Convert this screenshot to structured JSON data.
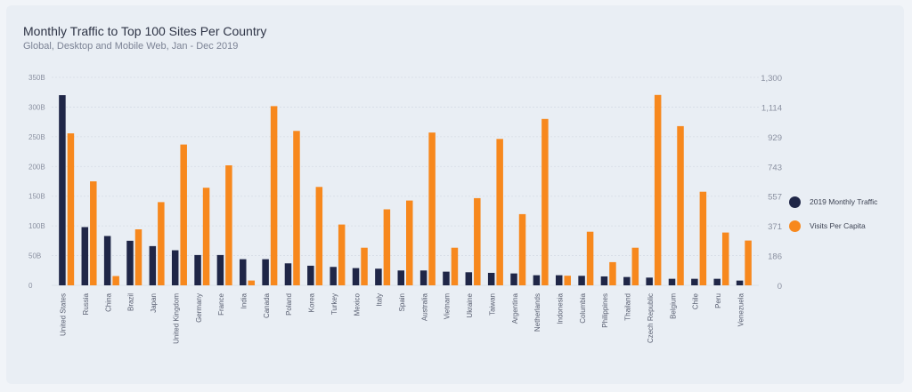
{
  "title": "Monthly Traffic to Top 100 Sites Per Country",
  "subtitle": "Global, Desktop and Mobile Web, Jan - Dec 2019",
  "colors": {
    "traffic": "#1f2647",
    "visits": "#f7881d",
    "grid": "#d6dce5",
    "tick": "#8a90a0"
  },
  "legend": [
    {
      "label": "2019 Monthly Traffic",
      "color": "#1f2647"
    },
    {
      "label": "Visits Per Capita",
      "color": "#f7881d"
    }
  ],
  "chart_data": {
    "type": "bar",
    "title": "Monthly Traffic to Top 100 Sites Per Country",
    "subtitle": "Global, Desktop and Mobile Web, Jan - Dec 2019",
    "categories": [
      "United States",
      "Russia",
      "China",
      "Brazil",
      "Japan",
      "United Kingdom",
      "Germany",
      "France",
      "India",
      "Canada",
      "Poland",
      "Korea",
      "Turkey",
      "Mexico",
      "Italy",
      "Spain",
      "Australia",
      "Vietnam",
      "Ukraine",
      "Taiwan",
      "Argentina",
      "Netherlands",
      "Indonesia",
      "Columbia",
      "Philippines",
      "Thailand",
      "Czech Republic",
      "Belgium",
      "Chile",
      "Peru",
      "Venezuela"
    ],
    "series": [
      {
        "name": "2019 Monthly Traffic",
        "axis": "left",
        "values": [
          320,
          98,
          83,
          75,
          66,
          59,
          51,
          51,
          44,
          44,
          37,
          33,
          31,
          29,
          28,
          25,
          25,
          23,
          22,
          21,
          20,
          17,
          17,
          16,
          15,
          14,
          13,
          11,
          11,
          11,
          8
        ]
      },
      {
        "name": "Visits Per Capita",
        "axis": "right",
        "values": [
          950,
          650,
          58,
          350,
          520,
          880,
          610,
          750,
          30,
          1120,
          965,
          615,
          380,
          235,
          475,
          530,
          955,
          235,
          545,
          915,
          445,
          1040,
          60,
          335,
          145,
          235,
          1190,
          995,
          585,
          330,
          280
        ]
      }
    ],
    "y_left": {
      "min": 0,
      "max": 350,
      "ticks": [
        "0",
        "50B",
        "100B",
        "150B",
        "200B",
        "250B",
        "300B",
        "350B"
      ]
    },
    "y_right": {
      "min": 0,
      "max": 1300,
      "ticks": [
        "0",
        "186",
        "371",
        "557",
        "743",
        "929",
        "1,114",
        "1,300"
      ]
    },
    "grid": true,
    "legend_position": "right"
  }
}
